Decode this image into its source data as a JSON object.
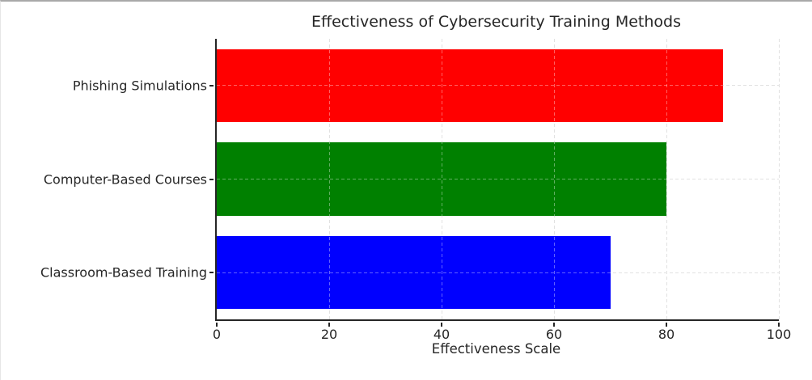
{
  "window": {
    "background": "#ffffff",
    "top_edge_color": "#a9a9a9"
  },
  "chart_data": {
    "type": "bar",
    "orientation": "horizontal",
    "title": "Effectiveness of Cybersecurity Training Methods",
    "categories": [
      "Phishing Simulations",
      "Computer-Based Courses",
      "Classroom-Based Training"
    ],
    "values": [
      90,
      80,
      70
    ],
    "bar_colors": [
      "#ff0000",
      "#008000",
      "#0000ff"
    ],
    "xlabel": "Effectiveness Scale",
    "ylabel": "",
    "xlim": [
      0,
      100
    ],
    "xticks": [
      0,
      20,
      40,
      60,
      80,
      100
    ],
    "grid": true,
    "grid_linestyle": "dashed",
    "legend": "none",
    "bar_height_fraction": 0.78,
    "axis_color": "#262626",
    "grid_color": "#cfcfcf"
  }
}
